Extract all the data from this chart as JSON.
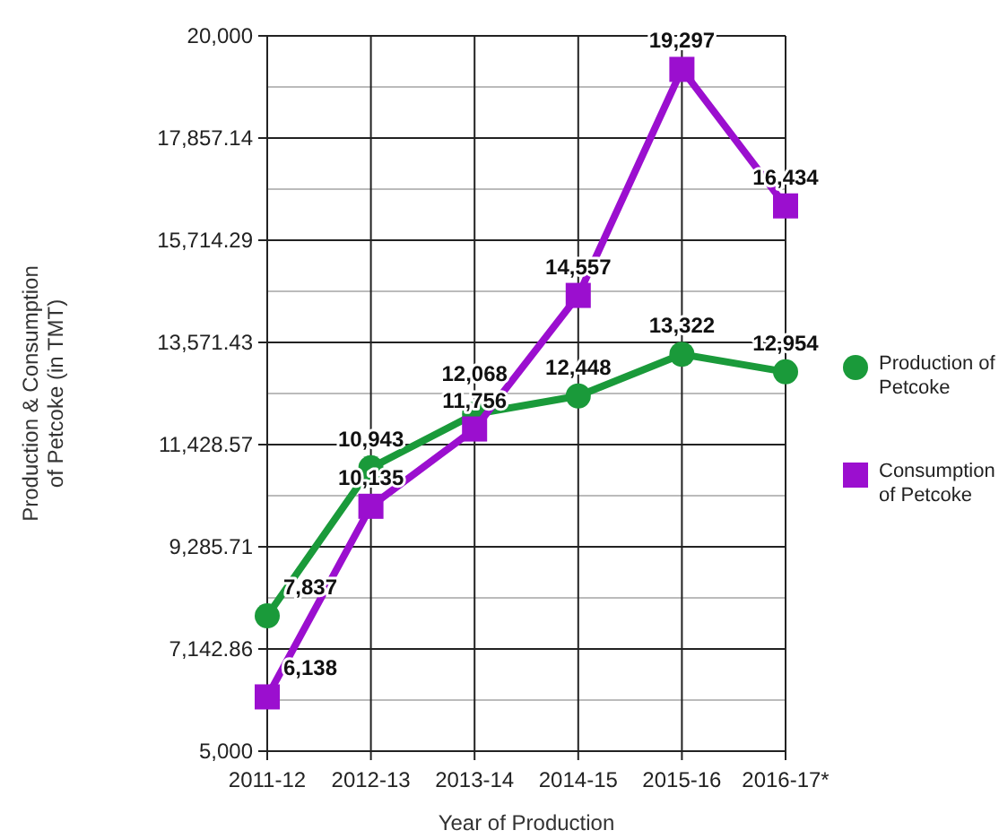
{
  "chart_data": {
    "type": "line",
    "xlabel": "Year of Production",
    "ylabel": "Production & Consumption of Petcoke (in TMT)",
    "categories": [
      "2011-12",
      "2012-13",
      "2013-14",
      "2014-15",
      "2015-16",
      "2016-17*"
    ],
    "series": [
      {
        "name": "Production of Petcoke",
        "color": "#1a9a3a",
        "marker": "circle",
        "values": [
          7837,
          10943,
          12068,
          12448,
          13322,
          12954
        ],
        "value_labels": [
          "7,837",
          "10,943",
          "12,068",
          "12,448",
          "13,322",
          "12,954"
        ]
      },
      {
        "name": "Consumption of Petcoke",
        "color": "#9b0fcf",
        "marker": "square",
        "values": [
          6138,
          10135,
          11756,
          14557,
          19297,
          16434
        ],
        "value_labels": [
          "6,138",
          "10,135",
          "11,756",
          "14,557",
          "19,297",
          "16,434"
        ]
      }
    ],
    "ylim": [
      5000,
      20000
    ],
    "yticks": [
      {
        "value": 5000,
        "label": "5,000"
      },
      {
        "value": 6071.43,
        "label": null
      },
      {
        "value": 7142.86,
        "label": "7,142.86"
      },
      {
        "value": 8214.29,
        "label": null
      },
      {
        "value": 9285.71,
        "label": "9,285.71"
      },
      {
        "value": 10357.14,
        "label": null
      },
      {
        "value": 11428.57,
        "label": "11,428.57"
      },
      {
        "value": 12500,
        "label": null
      },
      {
        "value": 13571.43,
        "label": "13,571.43"
      },
      {
        "value": 14642.86,
        "label": null
      },
      {
        "value": 15714.29,
        "label": "15,714.29"
      },
      {
        "value": 16785.71,
        "label": null
      },
      {
        "value": 17857.14,
        "label": "17,857.14"
      },
      {
        "value": 18928.57,
        "label": null
      },
      {
        "value": 20000,
        "label": "20,000"
      }
    ],
    "grid": true,
    "legend": "right",
    "line_style": "solid"
  }
}
